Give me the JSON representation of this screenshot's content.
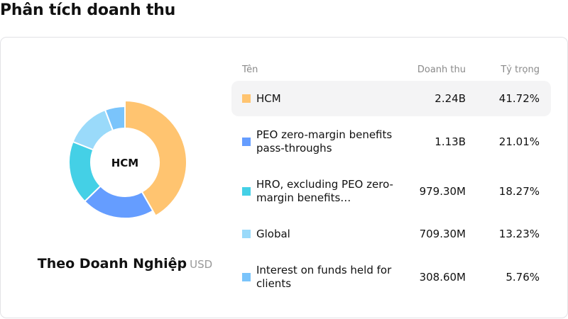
{
  "page": {
    "title": "Phân tích doanh thu"
  },
  "chart": {
    "center_label": "HCM",
    "subtitle": "Theo Doanh Nghiệp",
    "unit": "USD",
    "active_index": 0
  },
  "table": {
    "headers": {
      "name": "Tên",
      "revenue": "Doanh thu",
      "share": "Tỷ trọng"
    },
    "rows": [
      {
        "name": "HCM",
        "revenue": "2.24B",
        "share": "41.72%",
        "color": "#FFC470"
      },
      {
        "name": "PEO zero-margin benefits pass-throughs",
        "revenue": "1.13B",
        "share": "21.01%",
        "color": "#659DFF"
      },
      {
        "name": "HRO, excluding PEO zero-margin benefits…",
        "revenue": "979.30M",
        "share": "18.27%",
        "color": "#44D0E6"
      },
      {
        "name": "Global",
        "revenue": "709.30M",
        "share": "13.23%",
        "color": "#9ADAFA"
      },
      {
        "name": "Interest on funds held for clients",
        "revenue": "308.60M",
        "share": "5.76%",
        "color": "#7AC4FB"
      }
    ]
  },
  "chart_data": {
    "type": "pie",
    "title": "Phân tích doanh thu",
    "subtitle": "Theo Doanh Nghiệp (USD)",
    "categories": [
      "HCM",
      "PEO zero-margin benefits pass-throughs",
      "HRO, excluding PEO zero-margin benefits",
      "Global",
      "Interest on funds held for clients"
    ],
    "values": [
      2240000000,
      1130000000,
      979300000,
      709300000,
      308600000
    ],
    "percentages": [
      41.72,
      21.01,
      18.27,
      13.23,
      5.76
    ],
    "colors": [
      "#FFC470",
      "#659DFF",
      "#44D0E6",
      "#9ADAFA",
      "#7AC4FB"
    ],
    "donut": true,
    "highlighted": "HCM"
  }
}
